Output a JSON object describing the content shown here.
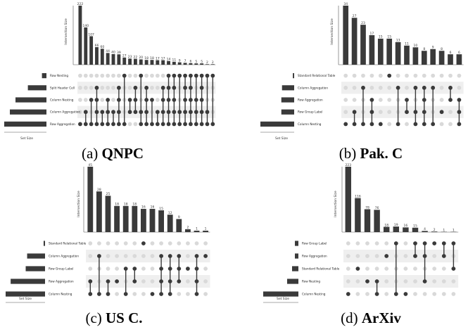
{
  "panels": [
    {
      "caption_prefix": "(a) ",
      "caption_name": "QNPC",
      "chart_data": {
        "type": "upset",
        "bar_axis_label": "Intersection Size",
        "set_axis_label": "Set Size",
        "sets": [
          "Row Nesting",
          "Split Header Cell",
          "Column Nesting",
          "Column Aggregation",
          "Row Aggregation"
        ],
        "set_sizes": [
          8,
          33,
          55,
          65,
          75
        ],
        "intersection_values": [
          222,
          140,
          107,
          66,
          60,
          44,
          40,
          39,
          27,
          23,
          22,
          20,
          18,
          18,
          17,
          17,
          14,
          11,
          9,
          7,
          6,
          5,
          5,
          2,
          2
        ],
        "intersection_labels": [
          "222",
          "140",
          "107",
          "66",
          "60",
          "44",
          "40",
          "39",
          "27",
          "23",
          "22",
          "20",
          "18",
          "18",
          "17",
          "17",
          "14",
          "11",
          "9",
          "7",
          "6",
          "5",
          "5",
          "2",
          "2"
        ],
        "memberships": [
          [
            4
          ],
          [
            3,
            4
          ],
          [
            2,
            4
          ],
          [
            1,
            2,
            3,
            4
          ],
          [
            3,
            4
          ],
          [
            2,
            3,
            4
          ],
          [
            3,
            4
          ],
          [
            1,
            2,
            3,
            4
          ],
          [
            0,
            4
          ],
          [
            2,
            3
          ],
          [
            1,
            2,
            3
          ],
          [
            0,
            3,
            4
          ],
          [
            1,
            2,
            3,
            4
          ],
          [
            2,
            4
          ],
          [
            3,
            4
          ],
          [
            1,
            2,
            3,
            4
          ],
          [
            0,
            1,
            2,
            3,
            4
          ],
          [
            0,
            1,
            2,
            3,
            4
          ],
          [
            0,
            3,
            4
          ],
          [
            0,
            1,
            2,
            3,
            4
          ],
          [
            0,
            1,
            2,
            3,
            4
          ],
          [
            0,
            2,
            3,
            4
          ],
          [
            0,
            1,
            2,
            3,
            4
          ],
          [
            0,
            3,
            4
          ],
          [
            0,
            4
          ]
        ]
      }
    },
    {
      "caption_prefix": "(b) ",
      "caption_name": "Pak. C",
      "chart_data": {
        "type": "upset",
        "bar_axis_label": "Intersection Size",
        "set_axis_label": "Set Size",
        "sets": [
          "Standard Relational Table",
          "Column Aggregation",
          "Row Aggregation",
          "Row Group Label",
          "Column Nesting"
        ],
        "set_sizes": [
          2,
          18,
          19,
          19,
          50
        ],
        "intersection_values": [
          34,
          27,
          23,
          17,
          15,
          15,
          13,
          11,
          10,
          8,
          9,
          8,
          6,
          6
        ],
        "intersection_labels": [
          "34",
          "27",
          "23",
          "17",
          "15",
          "15",
          "13",
          "11",
          "10",
          "8",
          "9",
          "8",
          "6",
          "6"
        ],
        "memberships": [
          [
            4
          ],
          [
            3,
            4
          ],
          [
            1,
            4
          ],
          [
            2,
            3,
            4
          ],
          [
            4
          ],
          [
            0
          ],
          [
            1,
            4
          ],
          [
            2,
            3
          ],
          [
            1,
            3,
            4
          ],
          [
            1,
            2,
            3,
            4
          ],
          [
            1,
            4
          ],
          [
            3
          ],
          [
            1,
            2
          ],
          [
            2,
            3,
            4
          ]
        ]
      }
    },
    {
      "caption_prefix": "(c) ",
      "caption_name": "US C.",
      "chart_data": {
        "type": "upset",
        "bar_axis_label": "Intersection Size",
        "set_axis_label": "Set Size",
        "sets": [
          "Standard Relational Table",
          "Column Aggregation",
          "Row Group Label",
          "Row Aggregation",
          "Column Nesting"
        ],
        "set_sizes": [
          2,
          25,
          27,
          48,
          55
        ],
        "intersection_values": [
          45,
          28,
          25,
          18,
          18,
          18,
          16,
          16,
          15,
          12,
          9,
          2,
          1,
          1
        ],
        "intersection_labels": [
          "45",
          "28",
          "25",
          "18",
          "18",
          "18",
          "16",
          "16",
          "15",
          "12",
          "9",
          "2",
          "1",
          "1"
        ],
        "memberships": [
          [
            3,
            4
          ],
          [
            1,
            4
          ],
          [
            3,
            4
          ],
          [
            3
          ],
          [
            2,
            4
          ],
          [
            2,
            3
          ],
          [
            0
          ],
          [
            4
          ],
          [
            1,
            2,
            3,
            4
          ],
          [
            1,
            2,
            3,
            4
          ],
          [
            1,
            2,
            3
          ],
          [
            2
          ],
          [
            1,
            2,
            3,
            4
          ],
          [
            1
          ]
        ]
      }
    },
    {
      "caption_prefix": "(d) ",
      "caption_name": "ArXiv",
      "chart_data": {
        "type": "upset",
        "bar_axis_label": "Intersection Size",
        "set_axis_label": "Set Size",
        "sets": [
          "Row Group Label",
          "Row Aggregation",
          "Standard Relational Table",
          "Row Nesting",
          "Column Nesting"
        ],
        "set_sizes": [
          5,
          5,
          9,
          16,
          50
        ],
        "intersection_values": [
          223,
          116,
          78,
          76,
          18,
          19,
          16,
          15,
          4,
          2,
          1,
          1
        ],
        "intersection_labels": [
          "223",
          "116",
          "78",
          "76",
          "18",
          "19",
          "16",
          "15",
          "4",
          "2",
          "1",
          "1"
        ],
        "memberships": [
          [
            4
          ],
          [
            2
          ],
          [
            3
          ],
          [
            3,
            4
          ],
          [
            1
          ],
          [
            0,
            4
          ],
          [
            4
          ],
          [
            0,
            1
          ],
          [
            0,
            1,
            3
          ],
          [
            0
          ],
          [
            0,
            1
          ],
          [
            0,
            2
          ]
        ]
      }
    }
  ]
}
